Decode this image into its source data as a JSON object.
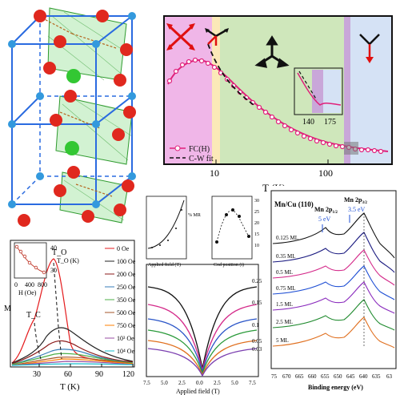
{
  "crystal": {},
  "fc_panel": {
    "xlabel": "T (K)",
    "xticks": [
      "10",
      "100"
    ],
    "legend": [
      "FC(H)",
      "C-W fit"
    ],
    "inset_ticks": [
      "140",
      "175"
    ],
    "colors": {
      "pink": "#f0b6e8",
      "yellow": "#fbe9b8",
      "green": "#cfe7bb",
      "purple": "#c9a7d9",
      "blue": "#d5e2f5",
      "curve": "#e0207a"
    }
  },
  "pt_panel": {
    "xlabel": "T (K)",
    "xticks": [
      "30",
      "60",
      "90",
      "120"
    ],
    "ylabel": "M",
    "labels": {
      "tc": "T_C",
      "to": "T_O"
    },
    "inset": {
      "xlabel": "H (Oe)",
      "ylabel": "T_O (K)",
      "xticks": [
        "0",
        "400",
        "800"
      ],
      "yticks": [
        "30",
        "40"
      ]
    },
    "legend": [
      "0 Oe",
      "100 Oe",
      "200 Oe",
      "250 Oe",
      "350 Oe",
      "500 Oe",
      "750 Oe",
      "10³ Oe",
      "10⁴ Oe"
    ],
    "legend_colors": [
      "#e41a1c",
      "#222222",
      "#8b1a1a",
      "#377eb8",
      "#4daf4a",
      "#a65628",
      "#ff7f00",
      "#984ea3",
      "#17becf"
    ]
  },
  "mr_panel": {
    "xlabel": "Applied field (T)",
    "xticks": [
      "7.5",
      "5.0",
      "2.5",
      "0.0",
      "2.5",
      "5.0",
      "7.5"
    ],
    "curve_labels": [
      "0.25",
      "0.15",
      "0.1",
      "0.05",
      "0.03"
    ],
    "inset1": {
      "xlabel": "Applied field (T)",
      "ylabel": "% MR"
    },
    "inset2": {
      "xlabel": "Cod position (i)",
      "yticks": [
        "30",
        "25",
        "20",
        "15",
        "10"
      ]
    }
  },
  "xps_panel": {
    "title": "Mn/Cu (110)",
    "peak_a": "Mn 2p",
    "peak_a_sub": "1/2",
    "peak_b": "Mn 2p",
    "peak_b_sub": "3/2",
    "split_a": "5 eV",
    "split_b": "3.5 eV",
    "coverages": [
      "0.125 ML",
      "0.35 ML",
      "0.5 ML",
      "0.75 ML",
      "1.5 ML",
      "2.5 ML",
      "5 ML"
    ],
    "coverage_colors": [
      "#111111",
      "#1a1a80",
      "#d42a8a",
      "#1f4fd4",
      "#8a2bbd",
      "#1f8a2e",
      "#e07020"
    ],
    "xticks": [
      "75",
      "670",
      "665",
      "660",
      "655",
      "650",
      "645",
      "640",
      "635",
      "63"
    ],
    "xlabel": "Binding energy (eV)"
  }
}
